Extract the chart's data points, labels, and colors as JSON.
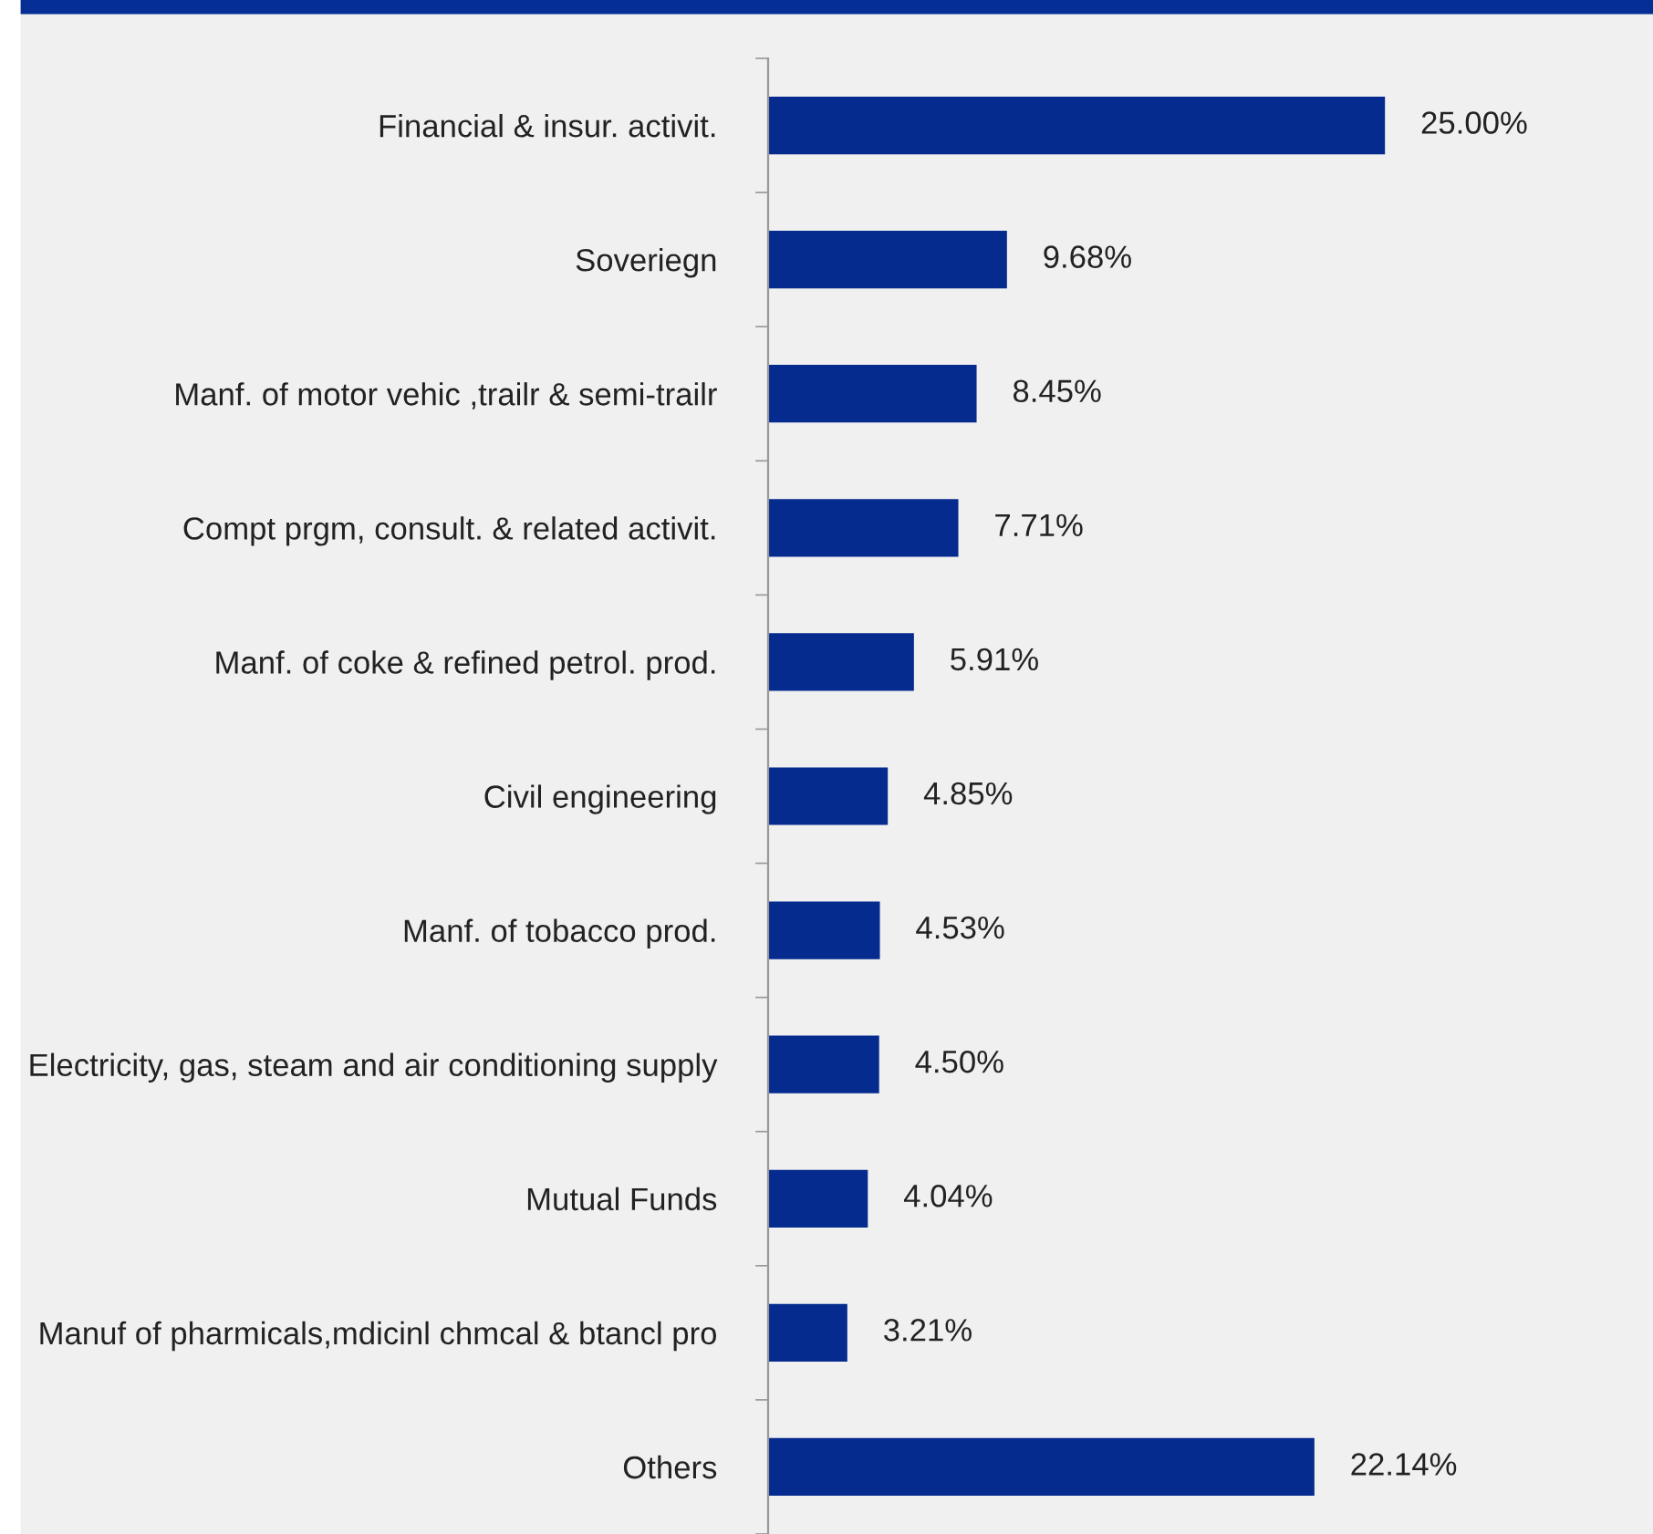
{
  "chart_data": {
    "type": "bar",
    "orientation": "horizontal",
    "categories": [
      "Financial & insur. activit.",
      "Soveriegn",
      "Manf. of motor vehic ,trailr & semi-trailr",
      "Compt prgm, consult. & related activit.",
      "Manf. of coke & refined petrol. prod.",
      "Civil engineering",
      "Manf. of tobacco prod.",
      "Electricity, gas, steam and air conditioning supply",
      "Mutual Funds",
      "Manuf of pharmicals,mdicinl chmcal & btancl pro",
      "Others"
    ],
    "values": [
      25.0,
      9.68,
      8.45,
      7.71,
      5.91,
      4.85,
      4.53,
      4.5,
      4.04,
      3.21,
      22.14
    ],
    "value_labels": [
      "25.00%",
      "9.68%",
      "8.45%",
      "7.71%",
      "5.91%",
      "4.85%",
      "4.53%",
      "4.50%",
      "4.04%",
      "3.21%",
      "22.14%"
    ],
    "color": "#062b8f",
    "grid": false,
    "legend": false
  }
}
